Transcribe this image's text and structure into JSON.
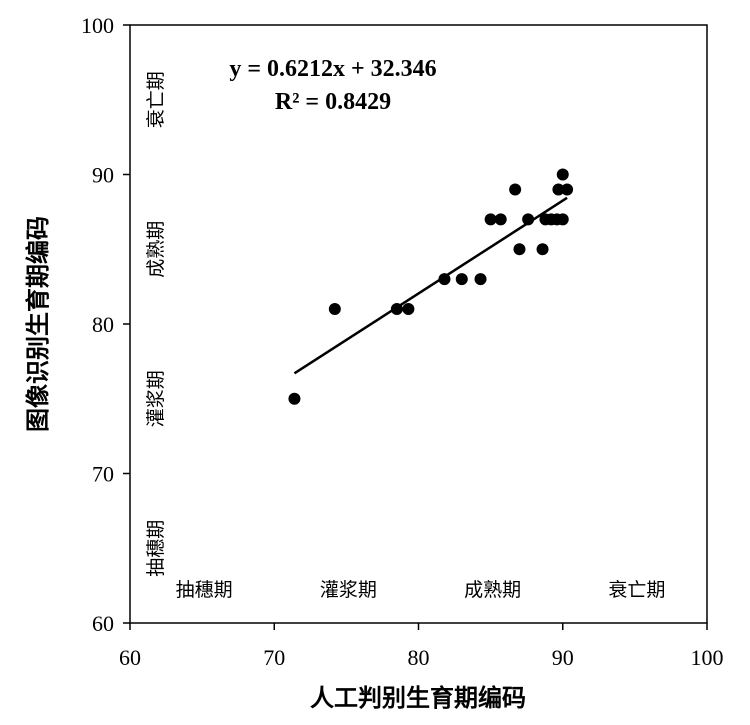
{
  "chart_data": {
    "type": "scatter",
    "xlabel": "人工判别生育期编码",
    "ylabel": "图像识别生育期编码",
    "xlim": [
      60,
      100
    ],
    "ylim": [
      60,
      100
    ],
    "x_ticks": [
      "60",
      "70",
      "80",
      "90",
      "100"
    ],
    "y_ticks": [
      "60",
      "70",
      "80",
      "90",
      "100"
    ],
    "grid": false,
    "points": [
      {
        "x": 71.4,
        "y": 75
      },
      {
        "x": 74.2,
        "y": 81
      },
      {
        "x": 78.5,
        "y": 81
      },
      {
        "x": 79.3,
        "y": 81
      },
      {
        "x": 81.8,
        "y": 83
      },
      {
        "x": 83.0,
        "y": 83
      },
      {
        "x": 84.3,
        "y": 83
      },
      {
        "x": 85.0,
        "y": 87
      },
      {
        "x": 85.7,
        "y": 87
      },
      {
        "x": 86.7,
        "y": 89
      },
      {
        "x": 87.0,
        "y": 85
      },
      {
        "x": 87.6,
        "y": 87
      },
      {
        "x": 88.6,
        "y": 85
      },
      {
        "x": 88.8,
        "y": 87
      },
      {
        "x": 89.2,
        "y": 87
      },
      {
        "x": 89.6,
        "y": 87
      },
      {
        "x": 89.7,
        "y": 89
      },
      {
        "x": 90.0,
        "y": 90
      },
      {
        "x": 90.0,
        "y": 87
      },
      {
        "x": 90.3,
        "y": 89
      }
    ],
    "trendline": {
      "slope": 0.6212,
      "intercept": 32.346,
      "x_range": [
        71.4,
        90.3
      ]
    },
    "equation": "y = 0.6212x + 32.346",
    "r_squared": "R² = 0.8429",
    "x_stage_labels": [
      {
        "text": "抽穗期",
        "center": 65
      },
      {
        "text": "灌浆期",
        "center": 75
      },
      {
        "text": "成熟期",
        "center": 85
      },
      {
        "text": "衰亡期",
        "center": 95
      }
    ],
    "y_stage_labels": [
      {
        "text": "抽穗期",
        "center": 65
      },
      {
        "text": "灌浆期",
        "center": 75
      },
      {
        "text": "成熟期",
        "center": 85
      },
      {
        "text": "衰亡期",
        "center": 95
      }
    ]
  }
}
